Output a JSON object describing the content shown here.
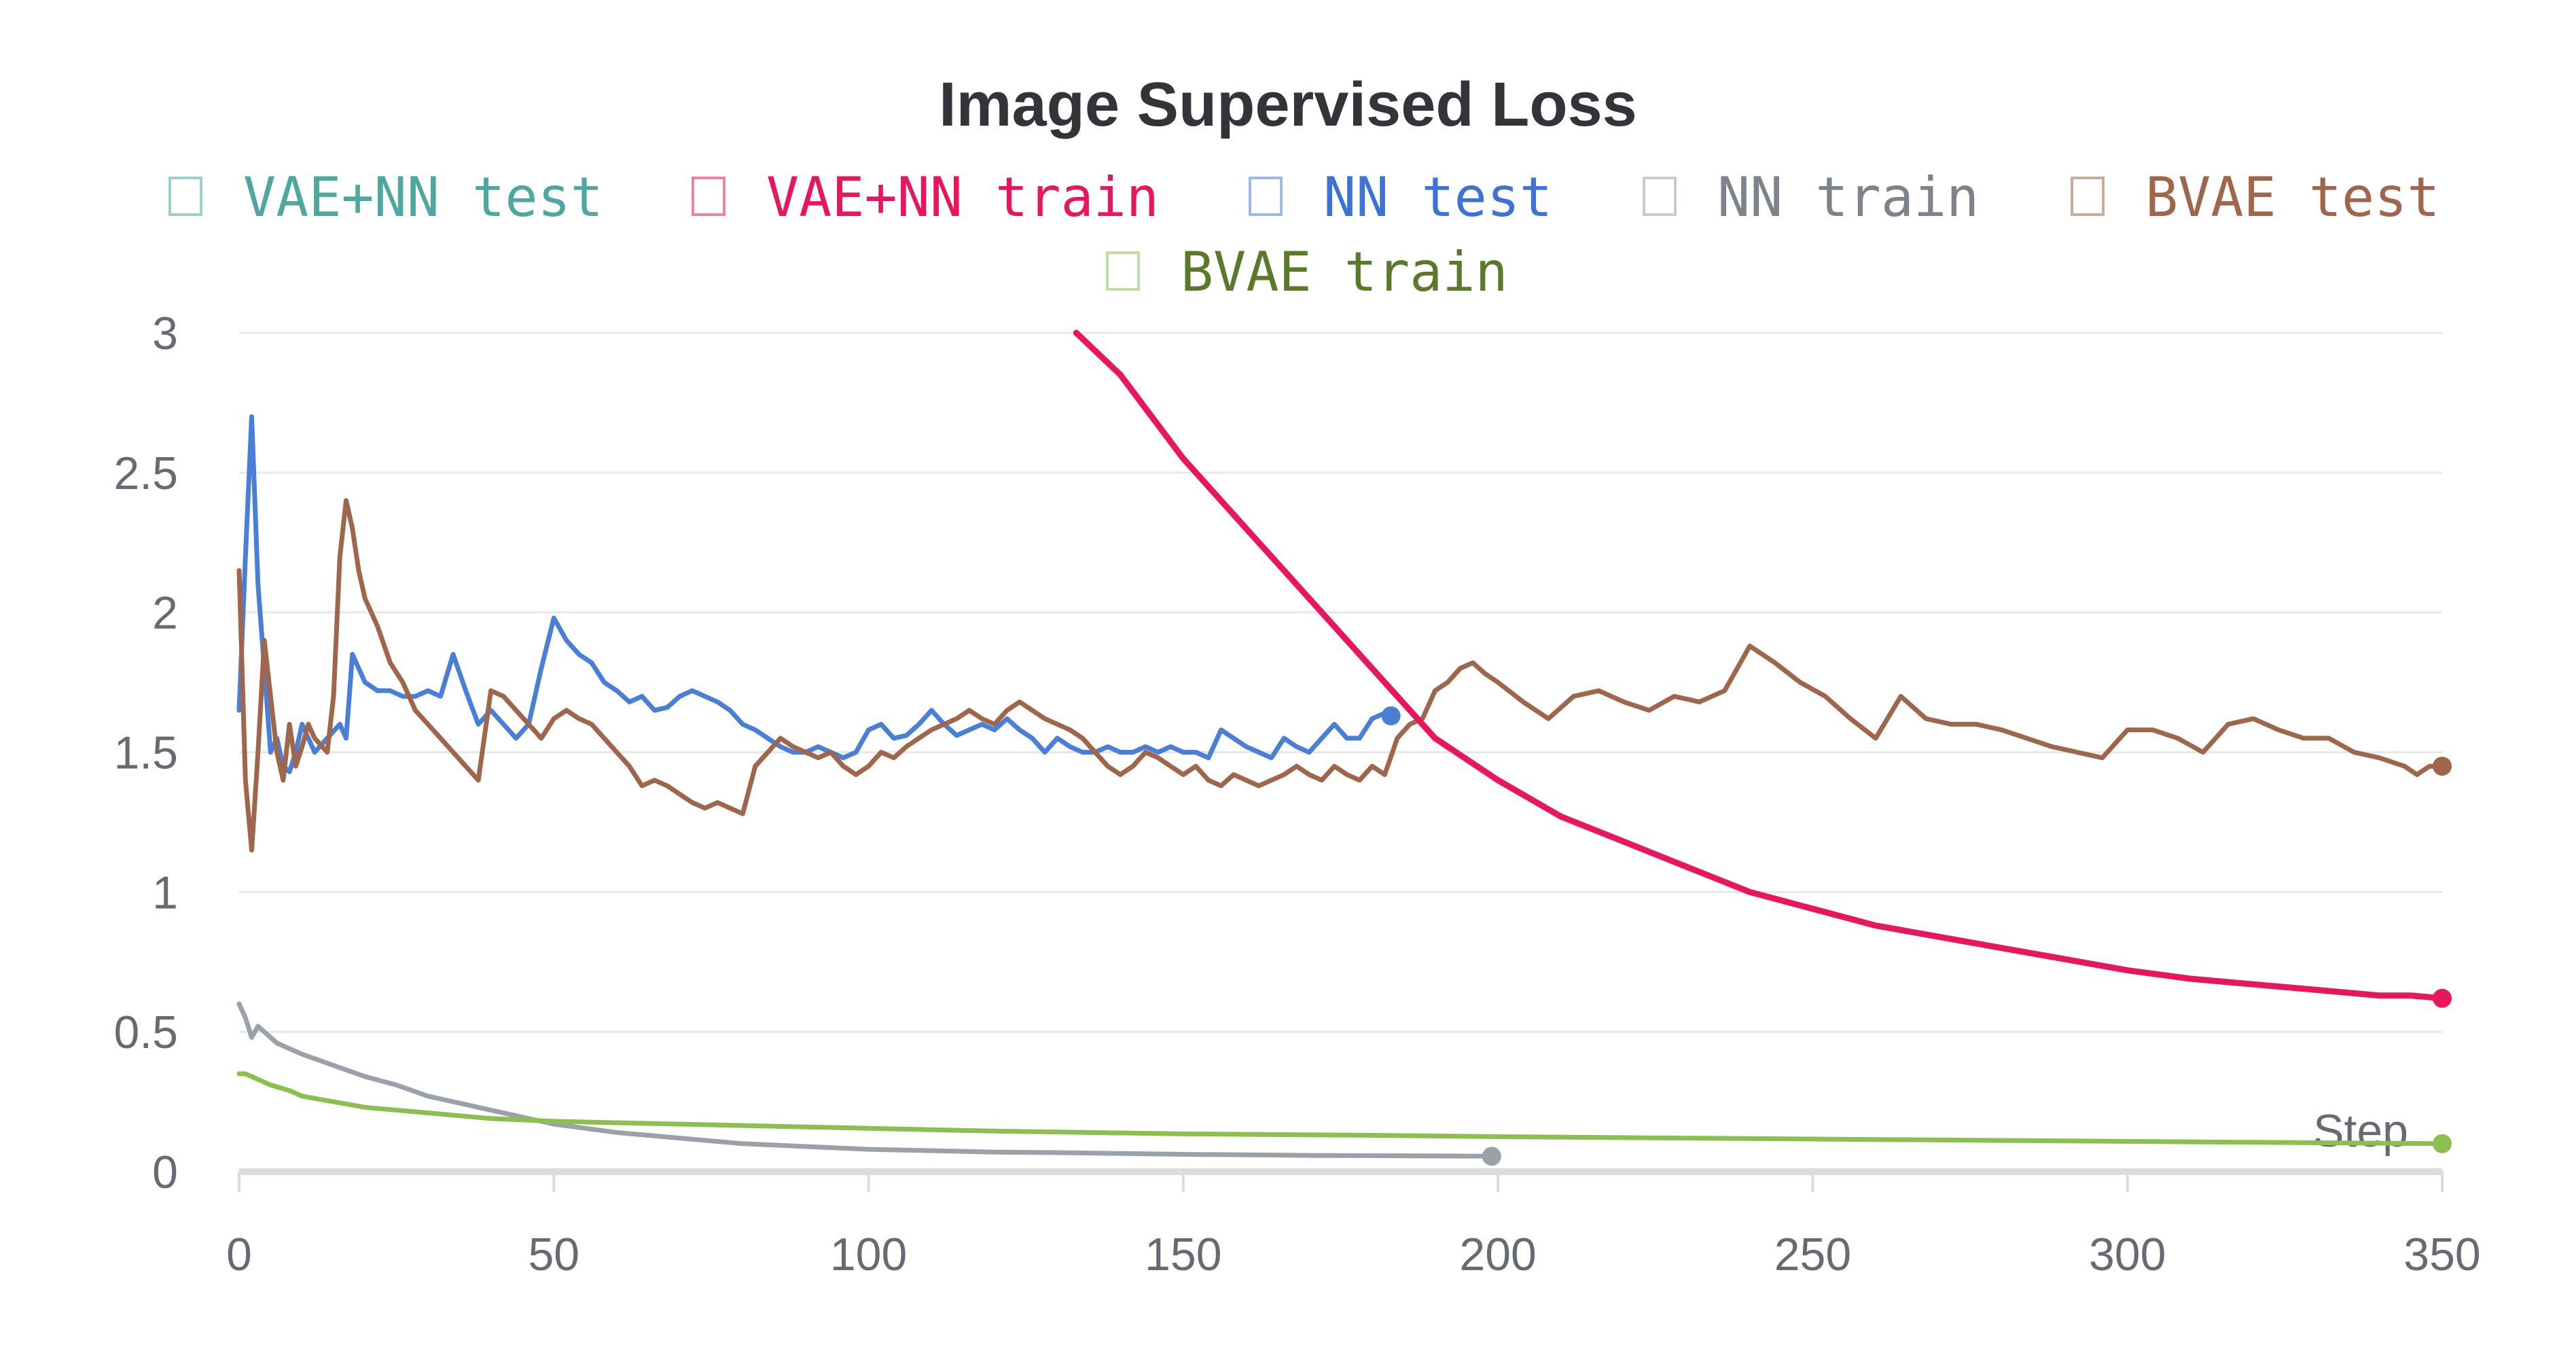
{
  "chart_data": {
    "type": "line",
    "title": "Image Supervised Loss",
    "xlabel": "Step",
    "ylabel": "",
    "xlim": [
      0,
      350
    ],
    "ylim": [
      0,
      3
    ],
    "x_ticks": [
      0,
      50,
      100,
      150,
      200,
      250,
      300,
      350
    ],
    "y_ticks": [
      0,
      0.5,
      1,
      1.5,
      2,
      2.5,
      3
    ],
    "y_tick_labels": [
      "0",
      "0.5",
      "1",
      "1.5",
      "2",
      "2.5",
      "3"
    ],
    "grid": "horizontal",
    "legend_position": "top",
    "series": [
      {
        "name": "VAE+NN test",
        "color": "#4fa8a0",
        "x": [],
        "y": []
      },
      {
        "name": "VAE+NN train",
        "color": "#e8175d",
        "x": [
          133,
          140,
          150,
          160,
          170,
          180,
          190,
          200,
          210,
          220,
          230,
          240,
          250,
          260,
          270,
          280,
          290,
          300,
          310,
          320,
          330,
          340,
          345,
          350
        ],
        "y": [
          3.0,
          2.85,
          2.55,
          2.3,
          2.05,
          1.8,
          1.55,
          1.4,
          1.27,
          1.18,
          1.09,
          1.0,
          0.94,
          0.88,
          0.84,
          0.8,
          0.76,
          0.72,
          0.69,
          0.67,
          0.65,
          0.63,
          0.63,
          0.62
        ]
      },
      {
        "name": "NN test",
        "color": "#4a7fd8",
        "x": [
          0,
          1,
          2,
          3,
          4,
          5,
          6,
          7,
          8,
          9,
          10,
          11,
          12,
          14,
          16,
          17,
          18,
          19,
          20,
          22,
          24,
          26,
          28,
          30,
          32,
          34,
          36,
          38,
          40,
          42,
          44,
          46,
          48,
          50,
          52,
          54,
          56,
          58,
          60,
          62,
          64,
          66,
          68,
          70,
          72,
          74,
          76,
          78,
          80,
          82,
          84,
          86,
          88,
          90,
          92,
          94,
          96,
          98,
          100,
          102,
          104,
          106,
          108,
          110,
          112,
          114,
          116,
          118,
          120,
          122,
          124,
          126,
          128,
          130,
          132,
          134,
          136,
          138,
          140,
          142,
          144,
          146,
          148,
          150,
          152,
          154,
          156,
          158,
          160,
          162,
          164,
          166,
          168,
          170,
          172,
          174,
          176,
          178,
          180,
          182,
          183
        ],
        "y": [
          1.65,
          2.2,
          2.7,
          2.1,
          1.8,
          1.5,
          1.55,
          1.45,
          1.43,
          1.5,
          1.6,
          1.55,
          1.5,
          1.55,
          1.6,
          1.55,
          1.85,
          1.8,
          1.75,
          1.72,
          1.72,
          1.7,
          1.7,
          1.72,
          1.7,
          1.85,
          1.72,
          1.6,
          1.65,
          1.6,
          1.55,
          1.6,
          1.8,
          1.98,
          1.9,
          1.85,
          1.82,
          1.75,
          1.72,
          1.68,
          1.7,
          1.65,
          1.66,
          1.7,
          1.72,
          1.7,
          1.68,
          1.65,
          1.6,
          1.58,
          1.55,
          1.52,
          1.5,
          1.5,
          1.52,
          1.5,
          1.48,
          1.5,
          1.58,
          1.6,
          1.55,
          1.56,
          1.6,
          1.65,
          1.6,
          1.56,
          1.58,
          1.6,
          1.58,
          1.62,
          1.58,
          1.55,
          1.5,
          1.55,
          1.52,
          1.5,
          1.5,
          1.52,
          1.5,
          1.5,
          1.52,
          1.5,
          1.52,
          1.5,
          1.5,
          1.48,
          1.58,
          1.55,
          1.52,
          1.5,
          1.48,
          1.55,
          1.52,
          1.5,
          1.55,
          1.6,
          1.55,
          1.55,
          1.62,
          1.64,
          1.63
        ]
      },
      {
        "name": "NN train",
        "color": "#9aa1a9",
        "x": [
          0,
          1,
          2,
          3,
          4,
          5,
          6,
          8,
          10,
          15,
          20,
          25,
          30,
          40,
          50,
          60,
          70,
          80,
          90,
          100,
          110,
          120,
          130,
          140,
          150,
          160,
          170,
          180,
          190,
          199
        ],
        "y": [
          0.6,
          0.55,
          0.48,
          0.52,
          0.5,
          0.48,
          0.46,
          0.44,
          0.42,
          0.38,
          0.34,
          0.31,
          0.27,
          0.22,
          0.17,
          0.14,
          0.12,
          0.1,
          0.09,
          0.08,
          0.075,
          0.07,
          0.068,
          0.065,
          0.062,
          0.06,
          0.058,
          0.057,
          0.056,
          0.055
        ]
      },
      {
        "name": "BVAE test",
        "color": "#a0664c",
        "x": [
          0,
          1,
          2,
          3,
          4,
          5,
          6,
          7,
          8,
          9,
          10,
          11,
          12,
          14,
          15,
          16,
          17,
          18,
          19,
          20,
          21,
          22,
          24,
          26,
          28,
          30,
          32,
          34,
          36,
          38,
          40,
          42,
          44,
          46,
          48,
          50,
          52,
          54,
          56,
          58,
          60,
          62,
          64,
          66,
          68,
          70,
          72,
          74,
          76,
          78,
          80,
          82,
          84,
          86,
          88,
          90,
          92,
          94,
          96,
          98,
          100,
          102,
          104,
          106,
          108,
          110,
          112,
          114,
          116,
          118,
          120,
          122,
          124,
          126,
          128,
          130,
          132,
          134,
          136,
          138,
          140,
          142,
          144,
          146,
          148,
          150,
          152,
          154,
          156,
          158,
          160,
          162,
          164,
          166,
          168,
          170,
          172,
          174,
          176,
          178,
          180,
          182,
          184,
          186,
          188,
          190,
          192,
          194,
          196,
          198,
          200,
          204,
          208,
          212,
          216,
          220,
          224,
          228,
          232,
          236,
          240,
          244,
          248,
          252,
          256,
          260,
          264,
          268,
          272,
          276,
          280,
          284,
          288,
          292,
          296,
          300,
          304,
          308,
          312,
          316,
          320,
          324,
          328,
          332,
          336,
          340,
          344,
          346,
          348,
          350
        ],
        "y": [
          2.15,
          1.4,
          1.15,
          1.5,
          1.9,
          1.7,
          1.5,
          1.4,
          1.6,
          1.45,
          1.52,
          1.6,
          1.55,
          1.5,
          1.7,
          2.2,
          2.4,
          2.3,
          2.15,
          2.05,
          2.0,
          1.95,
          1.82,
          1.75,
          1.65,
          1.6,
          1.55,
          1.5,
          1.45,
          1.4,
          1.72,
          1.7,
          1.65,
          1.6,
          1.55,
          1.62,
          1.65,
          1.62,
          1.6,
          1.55,
          1.5,
          1.45,
          1.38,
          1.4,
          1.38,
          1.35,
          1.32,
          1.3,
          1.32,
          1.3,
          1.28,
          1.45,
          1.5,
          1.55,
          1.52,
          1.5,
          1.48,
          1.5,
          1.45,
          1.42,
          1.45,
          1.5,
          1.48,
          1.52,
          1.55,
          1.58,
          1.6,
          1.62,
          1.65,
          1.62,
          1.6,
          1.65,
          1.68,
          1.65,
          1.62,
          1.6,
          1.58,
          1.55,
          1.5,
          1.45,
          1.42,
          1.45,
          1.5,
          1.48,
          1.45,
          1.42,
          1.45,
          1.4,
          1.38,
          1.42,
          1.4,
          1.38,
          1.4,
          1.42,
          1.45,
          1.42,
          1.4,
          1.45,
          1.42,
          1.4,
          1.45,
          1.42,
          1.55,
          1.6,
          1.62,
          1.72,
          1.75,
          1.8,
          1.82,
          1.78,
          1.75,
          1.68,
          1.62,
          1.7,
          1.72,
          1.68,
          1.65,
          1.7,
          1.68,
          1.72,
          1.88,
          1.82,
          1.75,
          1.7,
          1.62,
          1.55,
          1.7,
          1.62,
          1.6,
          1.6,
          1.58,
          1.55,
          1.52,
          1.5,
          1.48,
          1.58,
          1.58,
          1.55,
          1.5,
          1.6,
          1.62,
          1.58,
          1.55,
          1.55,
          1.5,
          1.48,
          1.45,
          1.42,
          1.45,
          1.45
        ]
      },
      {
        "name": "BVAE train",
        "color": "#8cbf50",
        "x": [
          0,
          1,
          2,
          3,
          5,
          8,
          10,
          15,
          20,
          30,
          40,
          50,
          60,
          80,
          100,
          120,
          150,
          180,
          200,
          230,
          260,
          290,
          320,
          350
        ],
        "y": [
          0.35,
          0.35,
          0.34,
          0.33,
          0.31,
          0.29,
          0.27,
          0.25,
          0.23,
          0.21,
          0.19,
          0.18,
          0.175,
          0.165,
          0.155,
          0.145,
          0.135,
          0.13,
          0.125,
          0.12,
          0.115,
          0.11,
          0.105,
          0.1
        ]
      }
    ]
  }
}
